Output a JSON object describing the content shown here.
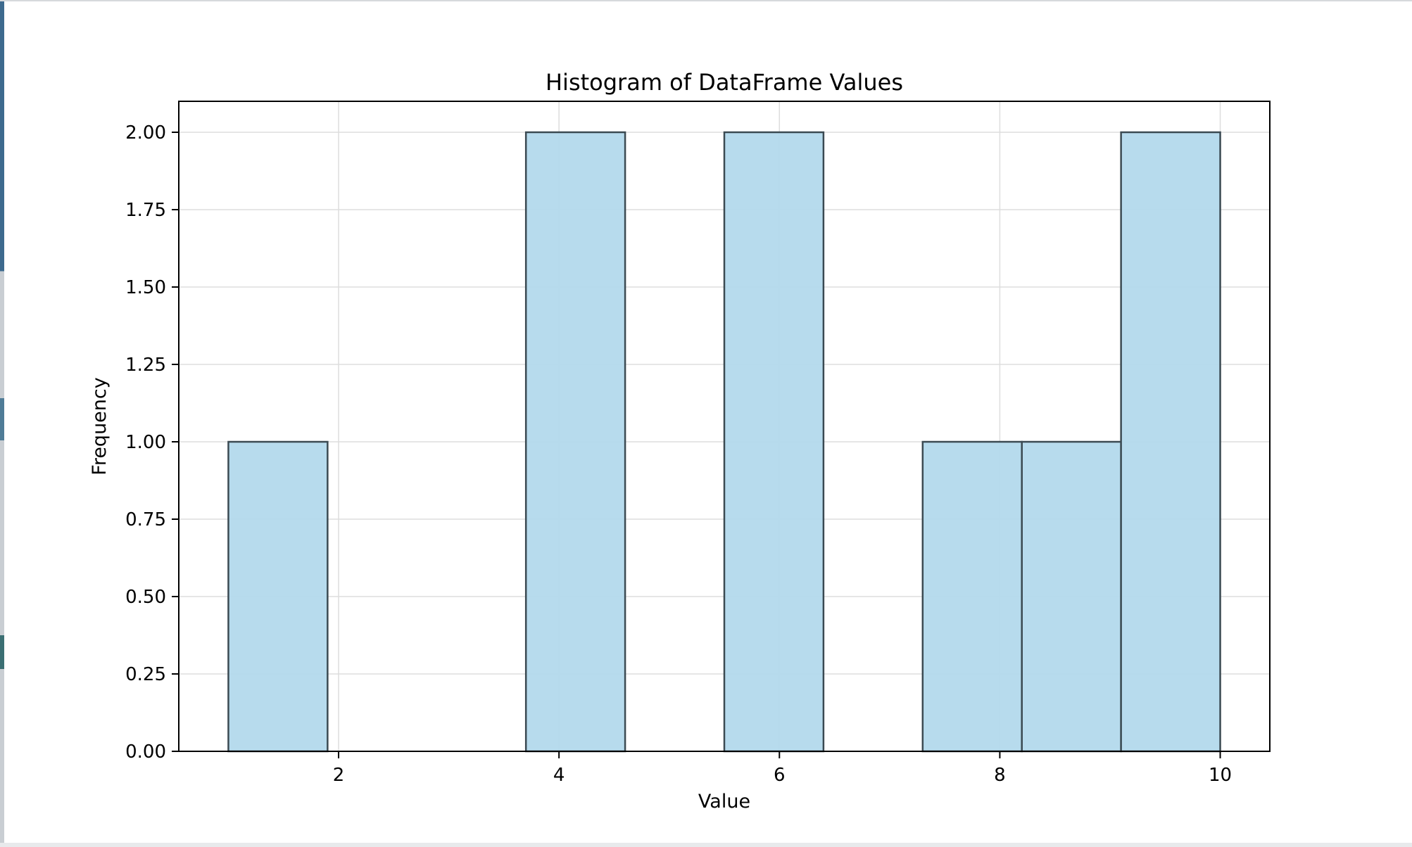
{
  "chart_data": {
    "type": "bar",
    "title": "Histogram of DataFrame Values",
    "xlabel": "Value",
    "ylabel": "Frequency",
    "bins": [
      {
        "start": 1.0,
        "end": 1.9,
        "value": 1
      },
      {
        "start": 1.9,
        "end": 2.8,
        "value": 0
      },
      {
        "start": 2.8,
        "end": 3.7,
        "value": 0
      },
      {
        "start": 3.7,
        "end": 4.6,
        "value": 2
      },
      {
        "start": 4.6,
        "end": 5.5,
        "value": 0
      },
      {
        "start": 5.5,
        "end": 6.4,
        "value": 2
      },
      {
        "start": 6.4,
        "end": 7.3,
        "value": 0
      },
      {
        "start": 7.3,
        "end": 8.2,
        "value": 1
      },
      {
        "start": 8.2,
        "end": 9.1,
        "value": 1
      },
      {
        "start": 9.1,
        "end": 10.0,
        "value": 2
      }
    ],
    "xlim": [
      0.55,
      10.45
    ],
    "ylim": [
      0,
      2.1
    ],
    "xticks": [
      "2",
      "4",
      "6",
      "8",
      "10"
    ],
    "yticks": [
      "0.00",
      "0.25",
      "0.50",
      "0.75",
      "1.00",
      "1.25",
      "1.50",
      "1.75",
      "2.00"
    ],
    "grid": true,
    "bar_color": "#b3d9ec",
    "edge_color": "#3b4a52"
  }
}
